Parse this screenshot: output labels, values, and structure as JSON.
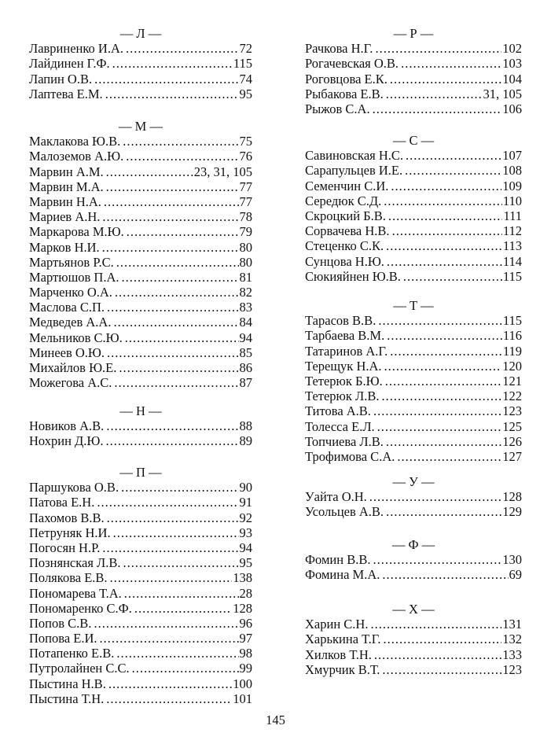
{
  "sections": {
    "L": {
      "header": "— Л —",
      "entries": [
        {
          "name": "Лавриненко И.А.",
          "page": "72"
        },
        {
          "name": "Лайдинен Г.Ф.",
          "page": "115"
        },
        {
          "name": "Лапин О.В.",
          "page": "74"
        },
        {
          "name": "Лаптева Е.М.",
          "page": "95"
        }
      ]
    },
    "M": {
      "header": "— М —",
      "entries": [
        {
          "name": "Маклакова Ю.В.",
          "page": "75"
        },
        {
          "name": "Малоземов А.Ю.",
          "page": "76"
        },
        {
          "name": "Марвин А.М.",
          "page": "23, 31, 105"
        },
        {
          "name": "Марвин М.А.",
          "page": "77"
        },
        {
          "name": "Марвин Н.А.",
          "page": "77"
        },
        {
          "name": "Мариев А.Н.",
          "page": "78"
        },
        {
          "name": "Маркарова М.Ю.",
          "page": "79"
        },
        {
          "name": "Марков Н.И.",
          "page": "80"
        },
        {
          "name": "Мартьянов Р.С.",
          "page": "80"
        },
        {
          "name": "Мартюшов П.А.",
          "page": "81"
        },
        {
          "name": "Марченко О.А.",
          "page": "82"
        },
        {
          "name": "Маслова С.П.",
          "page": "83"
        },
        {
          "name": "Медведев А.А.",
          "page": "84"
        },
        {
          "name": "Мельников С.Ю.",
          "page": "94"
        },
        {
          "name": "Минеев О.Ю.",
          "page": "85"
        },
        {
          "name": "Михайлов Ю.Е.",
          "page": "86"
        },
        {
          "name": "Можегова А.С.",
          "page": "87"
        }
      ]
    },
    "N": {
      "header": "— Н —",
      "entries": [
        {
          "name": "Новиков А.В.",
          "page": "88"
        },
        {
          "name": "Нохрин Д.Ю.",
          "page": "89"
        }
      ]
    },
    "P": {
      "header": "— П —",
      "entries": [
        {
          "name": "Паршукова О.В.",
          "page": "90"
        },
        {
          "name": "Патова Е.Н.",
          "page": "91"
        },
        {
          "name": "Пахомов В.В.",
          "page": "92"
        },
        {
          "name": "Петруняк Н.И.",
          "page": "93"
        },
        {
          "name": "Погосян Н.Р.",
          "page": "94"
        },
        {
          "name": "Познянская Л.В.",
          "page": "95"
        },
        {
          "name": "Полякова Е.В.",
          "page": "138"
        },
        {
          "name": "Пономарева Т.А.",
          "page": "28"
        },
        {
          "name": "Пономаренко С.Ф.",
          "page": "128"
        },
        {
          "name": "Попов С.В.",
          "page": "96"
        },
        {
          "name": "Попова Е.И.",
          "page": "97"
        },
        {
          "name": "Потапенко Е.В.",
          "page": "98"
        },
        {
          "name": "Путролайнен С.С.",
          "page": "99"
        },
        {
          "name": "Пыстина Н.В.",
          "page": "100"
        },
        {
          "name": "Пыстина Т.Н.",
          "page": "101"
        }
      ]
    },
    "R": {
      "header": "— Р —",
      "entries": [
        {
          "name": "Рачкова Н.Г.",
          "page": "102"
        },
        {
          "name": "Рогачевская О.В.",
          "page": "103"
        },
        {
          "name": "Роговцова Е.К.",
          "page": "104"
        },
        {
          "name": "Рыбакова Е.В.",
          "page": "31, 105"
        },
        {
          "name": "Рыжов С.А.",
          "page": "106"
        }
      ]
    },
    "S": {
      "header": "— С —",
      "entries": [
        {
          "name": "Савиновская Н.С.",
          "page": "107"
        },
        {
          "name": "Сарапульцев И.Е.",
          "page": "108"
        },
        {
          "name": "Семенчин С.И.",
          "page": "109"
        },
        {
          "name": "Середюк С.Д.",
          "page": "110"
        },
        {
          "name": "Скроцкий Б.В.",
          "page": "111"
        },
        {
          "name": "Сорвачева Н.В.",
          "page": "112"
        },
        {
          "name": "Стеценко С.К.",
          "page": "113"
        },
        {
          "name": "Сунцова Н.Ю.",
          "page": "114"
        },
        {
          "name": "Сюкияйнен Ю.В.",
          "page": "115"
        }
      ]
    },
    "T": {
      "header": "— Т —",
      "entries": [
        {
          "name": "Тарасов В.В.",
          "page": "115"
        },
        {
          "name": "Тарбаева В.М.",
          "page": "116"
        },
        {
          "name": "Татаринов А.Г.",
          "page": "119"
        },
        {
          "name": "Терещук Н.А.",
          "page": "120"
        },
        {
          "name": "Тетерюк Б.Ю.",
          "page": "121"
        },
        {
          "name": "Тетерюк Л.В.",
          "page": "122"
        },
        {
          "name": "Титова А.В.",
          "page": "123"
        },
        {
          "name": "Толесса Е.Л.",
          "page": "125"
        },
        {
          "name": "Топчиева Л.В.",
          "page": "126"
        },
        {
          "name": "Трофимова С.А.",
          "page": "127"
        }
      ]
    },
    "U": {
      "header": "— У —",
      "entries": [
        {
          "name": "Уайта О.Н.",
          "page": "128"
        },
        {
          "name": "Усольцев А.В.",
          "page": "129"
        }
      ]
    },
    "F": {
      "header": "— Ф —",
      "entries": [
        {
          "name": "Фомин В.В.",
          "page": "130"
        },
        {
          "name": "Фомина М.А.",
          "page": "69"
        }
      ]
    },
    "H": {
      "header": "— Х —",
      "entries": [
        {
          "name": "Харин С.Н.",
          "page": "131"
        },
        {
          "name": "Харькина Т.Г.",
          "page": "132"
        },
        {
          "name": "Хилков Т.Н.",
          "page": "133"
        },
        {
          "name": "Хмурчик В.Т.",
          "page": "123"
        }
      ]
    }
  },
  "page_number": "145"
}
